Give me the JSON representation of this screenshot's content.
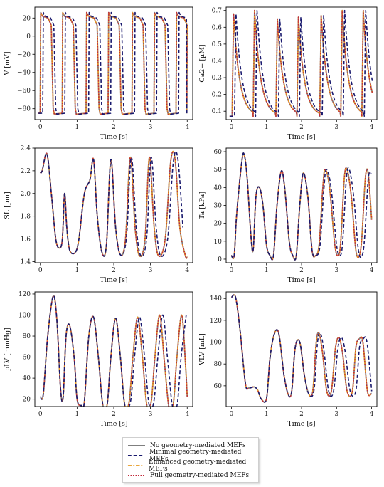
{
  "colors": {
    "no_mef": "#7f7f7f",
    "minimal": "#1a1a6e",
    "enhanced": "#e69a22",
    "full": "#c22a3a"
  },
  "legend": {
    "items": [
      "No geometry-mediated MEFs",
      "Minimal geometry-mediated MEFs",
      "Enhanced geometry-mediated MEFs",
      "Full geometry-mediated MEFs"
    ]
  },
  "chart_data": [
    {
      "type": "line",
      "xlabel": "Time [s]",
      "ylabel": "V [mV]",
      "xlim": [
        -0.15,
        4.15
      ],
      "ylim": [
        -92,
        32
      ],
      "xticks": [
        0,
        1,
        2,
        3,
        4
      ],
      "yticks": [
        -80,
        -60,
        -40,
        -20,
        0,
        20
      ],
      "beat_times": [
        0,
        0.6,
        1.25,
        1.85,
        2.5,
        3.1,
        3.7
      ],
      "apd": 0.35,
      "v_rest": -85,
      "v_peak": 26,
      "v_plateau": 20,
      "minimal_delay": 0.07
    },
    {
      "type": "line",
      "xlabel": "Time [s]",
      "ylabel": "Ca2+ [µM]",
      "xlim": [
        -0.15,
        4.15
      ],
      "ylim": [
        0.05,
        0.72
      ],
      "xticks": [
        0,
        1,
        2,
        3,
        4
      ],
      "yticks": [
        0.1,
        0.2,
        0.3,
        0.4,
        0.5,
        0.6,
        0.7
      ],
      "baseline": 0.07,
      "peaks": [
        0.68,
        0.7,
        0.65,
        0.66,
        0.67,
        0.7,
        0.7
      ],
      "minimal_delay": 0.07
    },
    {
      "type": "line",
      "xlabel": "Time [s]",
      "ylabel": "SL [µm]",
      "xlim": [
        -0.15,
        4.15
      ],
      "ylim": [
        1.39,
        2.4
      ],
      "xticks": [
        0,
        1,
        2,
        3,
        4
      ],
      "yticks": [
        1.4,
        1.6,
        1.8,
        2.0,
        2.2,
        2.4
      ],
      "points": [
        [
          0,
          2.18
        ],
        [
          0.05,
          2.2
        ],
        [
          0.18,
          2.35
        ],
        [
          0.3,
          2.0
        ],
        [
          0.42,
          1.6
        ],
        [
          0.52,
          1.52
        ],
        [
          0.6,
          1.6
        ],
        [
          0.66,
          2.0
        ],
        [
          0.72,
          1.7
        ],
        [
          0.8,
          1.5
        ],
        [
          0.95,
          1.48
        ],
        [
          1.05,
          1.6
        ],
        [
          1.2,
          2.0
        ],
        [
          1.35,
          2.12
        ],
        [
          1.45,
          2.3
        ],
        [
          1.55,
          1.8
        ],
        [
          1.68,
          1.48
        ],
        [
          1.8,
          1.55
        ],
        [
          1.92,
          2.3
        ],
        [
          2.05,
          1.7
        ],
        [
          2.18,
          1.46
        ],
        [
          2.32,
          1.6
        ],
        [
          2.45,
          2.32
        ],
        [
          2.58,
          1.7
        ],
        [
          2.7,
          1.45
        ],
        [
          2.85,
          1.6
        ],
        [
          2.97,
          2.32
        ],
        [
          3.1,
          1.7
        ],
        [
          3.22,
          1.45
        ],
        [
          3.4,
          1.6
        ],
        [
          3.55,
          2.28
        ],
        [
          3.67,
          2.3
        ],
        [
          3.8,
          1.7
        ],
        [
          3.95,
          1.45
        ],
        [
          4.0,
          1.44
        ]
      ],
      "minimal_delay": 0.07
    },
    {
      "type": "line",
      "xlabel": "Time [s]",
      "ylabel": "Ta [kPa]",
      "xlim": [
        -0.15,
        4.15
      ],
      "ylim": [
        -2,
        62
      ],
      "xticks": [
        0,
        1,
        2,
        3,
        4
      ],
      "yticks": [
        0,
        10,
        20,
        30,
        40,
        50,
        60
      ],
      "points": [
        [
          0,
          2
        ],
        [
          0.08,
          2
        ],
        [
          0.15,
          25
        ],
        [
          0.3,
          55
        ],
        [
          0.37,
          58
        ],
        [
          0.45,
          45
        ],
        [
          0.55,
          15
        ],
        [
          0.62,
          5
        ],
        [
          0.7,
          35
        ],
        [
          0.8,
          40
        ],
        [
          0.9,
          30
        ],
        [
          1.0,
          8
        ],
        [
          1.1,
          2
        ],
        [
          1.2,
          2
        ],
        [
          1.3,
          30
        ],
        [
          1.42,
          49
        ],
        [
          1.52,
          40
        ],
        [
          1.65,
          10
        ],
        [
          1.75,
          2
        ],
        [
          1.85,
          2
        ],
        [
          1.95,
          30
        ],
        [
          2.05,
          48
        ],
        [
          2.18,
          35
        ],
        [
          2.3,
          5
        ],
        [
          2.4,
          2
        ],
        [
          2.5,
          8
        ],
        [
          2.6,
          38
        ],
        [
          2.67,
          50
        ],
        [
          2.8,
          40
        ],
        [
          2.95,
          8
        ],
        [
          3.05,
          2
        ],
        [
          3.12,
          10
        ],
        [
          3.22,
          45
        ],
        [
          3.3,
          50
        ],
        [
          3.42,
          35
        ],
        [
          3.55,
          5
        ],
        [
          3.65,
          2
        ],
        [
          3.72,
          12
        ],
        [
          3.82,
          45
        ],
        [
          3.9,
          48
        ],
        [
          4.0,
          22
        ]
      ],
      "minimal_delay": 0.07
    },
    {
      "type": "line",
      "xlabel": "Time [s]",
      "ylabel": "pLV [mmHg]",
      "xlim": [
        -0.15,
        4.15
      ],
      "ylim": [
        13,
        122
      ],
      "xticks": [
        0,
        1,
        2,
        3,
        4
      ],
      "yticks": [
        20,
        40,
        60,
        80,
        100,
        120
      ],
      "points": [
        [
          0,
          22
        ],
        [
          0.08,
          25
        ],
        [
          0.2,
          80
        ],
        [
          0.35,
          118
        ],
        [
          0.45,
          95
        ],
        [
          0.55,
          30
        ],
        [
          0.62,
          22
        ],
        [
          0.7,
          80
        ],
        [
          0.8,
          90
        ],
        [
          0.92,
          60
        ],
        [
          1.0,
          20
        ],
        [
          1.12,
          14
        ],
        [
          1.2,
          18
        ],
        [
          1.32,
          80
        ],
        [
          1.45,
          98
        ],
        [
          1.58,
          60
        ],
        [
          1.7,
          15
        ],
        [
          1.82,
          15
        ],
        [
          1.92,
          60
        ],
        [
          2.05,
          97
        ],
        [
          2.18,
          60
        ],
        [
          2.3,
          14
        ],
        [
          2.42,
          18
        ],
        [
          2.52,
          60
        ],
        [
          2.65,
          98
        ],
        [
          2.78,
          60
        ],
        [
          2.9,
          14
        ],
        [
          3.02,
          18
        ],
        [
          3.12,
          60
        ],
        [
          3.25,
          100
        ],
        [
          3.38,
          55
        ],
        [
          3.5,
          13
        ],
        [
          3.62,
          15
        ],
        [
          3.72,
          60
        ],
        [
          3.85,
          100
        ],
        [
          3.95,
          55
        ],
        [
          4.0,
          22
        ]
      ],
      "minimal_delay": 0.1
    },
    {
      "type": "line",
      "xlabel": "Time [s]",
      "ylabel": "VLV [mL]",
      "xlim": [
        -0.15,
        4.15
      ],
      "ylim": [
        41,
        146
      ],
      "xticks": [
        0,
        1,
        2,
        3,
        4
      ],
      "yticks": [
        60,
        80,
        100,
        120,
        140
      ],
      "points": [
        [
          0,
          141
        ],
        [
          0.12,
          141
        ],
        [
          0.25,
          110
        ],
        [
          0.4,
          62
        ],
        [
          0.5,
          58
        ],
        [
          0.65,
          59
        ],
        [
          0.75,
          56
        ],
        [
          0.85,
          48
        ],
        [
          1.0,
          48
        ],
        [
          1.1,
          85
        ],
        [
          1.22,
          107
        ],
        [
          1.35,
          108
        ],
        [
          1.5,
          70
        ],
        [
          1.62,
          52
        ],
        [
          1.72,
          55
        ],
        [
          1.82,
          95
        ],
        [
          1.95,
          100
        ],
        [
          2.08,
          70
        ],
        [
          2.2,
          53
        ],
        [
          2.32,
          55
        ],
        [
          2.42,
          100
        ],
        [
          2.5,
          108
        ],
        [
          2.6,
          90
        ],
        [
          2.72,
          55
        ],
        [
          2.85,
          55
        ],
        [
          2.97,
          95
        ],
        [
          3.07,
          104
        ],
        [
          3.17,
          90
        ],
        [
          3.3,
          55
        ],
        [
          3.45,
          55
        ],
        [
          3.55,
          95
        ],
        [
          3.65,
          103
        ],
        [
          3.75,
          100
        ],
        [
          3.88,
          55
        ],
        [
          4.0,
          53
        ]
      ],
      "minimal_delay": 0.1
    }
  ]
}
